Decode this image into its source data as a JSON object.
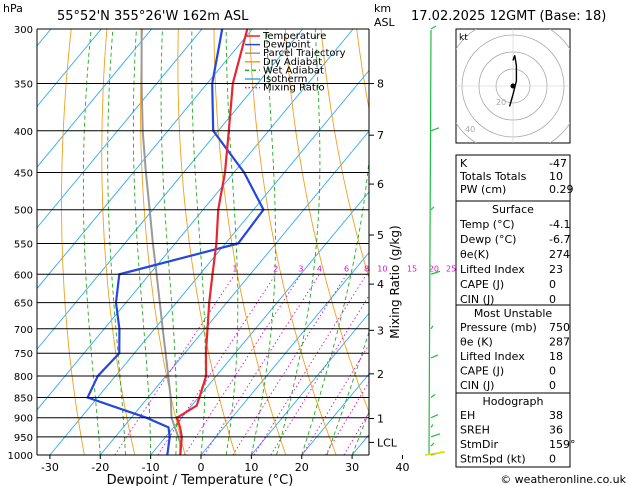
{
  "header": {
    "location": "55°52'N  355°26'W  162m  ASL",
    "datetime": "17.02.2025  12GMT  (Base: 18)",
    "pressure_unit": "hPa",
    "height_unit_top": "km",
    "height_unit_bottom": "ASL"
  },
  "chart_data": {
    "type": "skew-t",
    "xlabel": "Dewpoint / Temperature (°C)",
    "ylabel_right": "Mixing Ratio (g/kg)",
    "x_ticks": [
      -30,
      -20,
      -10,
      0,
      10,
      20,
      30,
      40
    ],
    "pressure_levels": [
      300,
      350,
      400,
      450,
      500,
      550,
      600,
      650,
      700,
      750,
      800,
      850,
      900,
      950,
      1000
    ],
    "height_ticks": [
      {
        "label": "8",
        "p": 350
      },
      {
        "label": "7",
        "p": 405
      },
      {
        "label": "6",
        "p": 465
      },
      {
        "label": "5",
        "p": 537
      },
      {
        "label": "4",
        "p": 617
      },
      {
        "label": "3",
        "p": 703
      },
      {
        "label": "2",
        "p": 795
      },
      {
        "label": "1",
        "p": 902
      },
      {
        "label": "LCL",
        "p": 965
      }
    ],
    "mixing_ratio_labels": [
      "1",
      "2",
      "3",
      "4",
      "6",
      "8",
      "10",
      "15",
      "20",
      "25"
    ],
    "mixing_ratio_values": [
      1,
      2,
      3,
      4,
      6,
      8,
      10,
      15,
      20,
      25
    ],
    "legend": [
      "Temperature",
      "Dewpoint",
      "Parcel Trajectory",
      "Dry Adiabat",
      "Wet Adiabat",
      "Isotherm",
      "Mixing Ratio"
    ],
    "temperature": [
      [
        1000,
        -4.1
      ],
      [
        950,
        -6.8
      ],
      [
        925,
        -8.7
      ],
      [
        900,
        -10.9
      ],
      [
        870,
        -9
      ],
      [
        850,
        -9.8
      ],
      [
        800,
        -12
      ],
      [
        750,
        -15.8
      ],
      [
        700,
        -19.5
      ],
      [
        650,
        -23.5
      ],
      [
        600,
        -27.5
      ],
      [
        550,
        -31.8
      ],
      [
        500,
        -37
      ],
      [
        450,
        -41.8
      ],
      [
        400,
        -47.9
      ],
      [
        350,
        -54.9
      ],
      [
        300,
        -61
      ]
    ],
    "dewpoint": [
      [
        1000,
        -6.7
      ],
      [
        950,
        -9.2
      ],
      [
        925,
        -11
      ],
      [
        900,
        -17
      ],
      [
        850,
        -32
      ],
      [
        800,
        -33.5
      ],
      [
        750,
        -33
      ],
      [
        700,
        -37
      ],
      [
        650,
        -42
      ],
      [
        600,
        -46
      ],
      [
        550,
        -27.5
      ],
      [
        500,
        -28
      ],
      [
        450,
        -38
      ],
      [
        400,
        -51
      ],
      [
        350,
        -59
      ],
      [
        300,
        -66
      ]
    ],
    "parcel": [
      [
        1000,
        -4.1
      ],
      [
        965,
        -6.2
      ],
      [
        900,
        -12
      ],
      [
        850,
        -15.5
      ],
      [
        800,
        -19.5
      ],
      [
        750,
        -23.8
      ],
      [
        700,
        -28.4
      ],
      [
        650,
        -33.3
      ],
      [
        600,
        -38.6
      ],
      [
        550,
        -44.4
      ],
      [
        500,
        -50.6
      ],
      [
        450,
        -57.5
      ],
      [
        400,
        -65
      ],
      [
        350,
        -73
      ],
      [
        300,
        -82
      ]
    ],
    "colors": {
      "temperature": "#e8262e",
      "dewpoint": "#2646e0",
      "parcel": "#999999",
      "dry_adiabat": "#f0a020",
      "wet_adiabat": "#22aa22",
      "isotherm": "#33aaee",
      "mixing_ratio": "#dd11cc"
    }
  },
  "hodograph": {
    "unit_label": "kt",
    "ring_labels": [
      "20",
      "40"
    ],
    "points": [
      [
        0,
        15
      ],
      [
        1,
        18
      ],
      [
        2,
        12
      ],
      [
        2,
        3
      ],
      [
        0,
        -5
      ],
      [
        -2,
        -12
      ]
    ]
  },
  "indices": {
    "rows": [
      {
        "label": "K",
        "value": "-47"
      },
      {
        "label": "Totals Totals",
        "value": "10"
      },
      {
        "label": "PW (cm)",
        "value": "0.29"
      }
    ]
  },
  "surface": {
    "title": "Surface",
    "rows": [
      {
        "label": "Temp (°C)",
        "value": "-4.1"
      },
      {
        "label": "Dewp (°C)",
        "value": "-6.7"
      },
      {
        "label": "θe(K)",
        "value": "274"
      },
      {
        "label": "Lifted Index",
        "value": "23"
      },
      {
        "label": "CAPE (J)",
        "value": "0"
      },
      {
        "label": "CIN (J)",
        "value": "0"
      }
    ]
  },
  "most_unstable": {
    "title": "Most Unstable",
    "rows": [
      {
        "label": "Pressure (mb)",
        "value": "750"
      },
      {
        "label": "θe (K)",
        "value": "287"
      },
      {
        "label": "Lifted Index",
        "value": "18"
      },
      {
        "label": "CAPE (J)",
        "value": "0"
      },
      {
        "label": "CIN (J)",
        "value": "0"
      }
    ]
  },
  "hodograph_table": {
    "title": "Hodograph",
    "rows": [
      {
        "label": "EH",
        "value": "38"
      },
      {
        "label": "SREH",
        "value": "36"
      },
      {
        "label": "StmDir",
        "value": "159°"
      },
      {
        "label": "StmSpd (kt)",
        "value": "0"
      }
    ]
  },
  "footer": {
    "copyright": "© weatheronline.co.uk"
  }
}
